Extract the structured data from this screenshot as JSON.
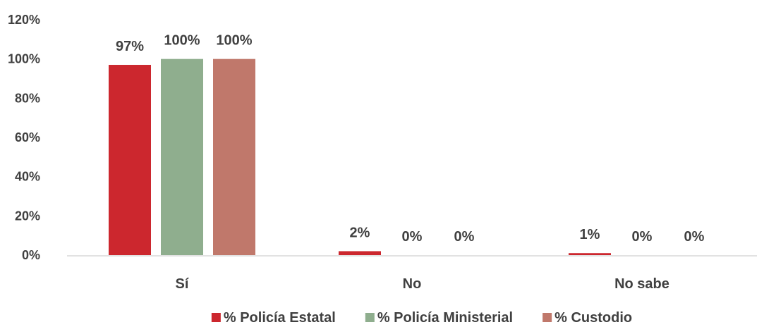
{
  "chart_data": {
    "type": "bar",
    "categories": [
      "Sí",
      "No",
      "No sabe"
    ],
    "series": [
      {
        "name": "% Policía Estatal",
        "values": [
          97,
          2,
          1
        ],
        "labels": [
          "97%",
          "2%",
          "1%"
        ],
        "color": "#cc272e"
      },
      {
        "name": "% Policía Ministerial",
        "values": [
          100,
          0,
          0
        ],
        "labels": [
          "100%",
          "0%",
          "0%"
        ],
        "color": "#8fae8e"
      },
      {
        "name": "% Custodio",
        "values": [
          100,
          0,
          0
        ],
        "labels": [
          "100%",
          "0%",
          "0%"
        ],
        "color": "#c0786b"
      }
    ],
    "y_ticks": [
      "0%",
      "20%",
      "40%",
      "60%",
      "80%",
      "100%",
      "120%"
    ],
    "ylim": [
      0,
      120
    ],
    "grid": false,
    "legend_position": "bottom"
  }
}
